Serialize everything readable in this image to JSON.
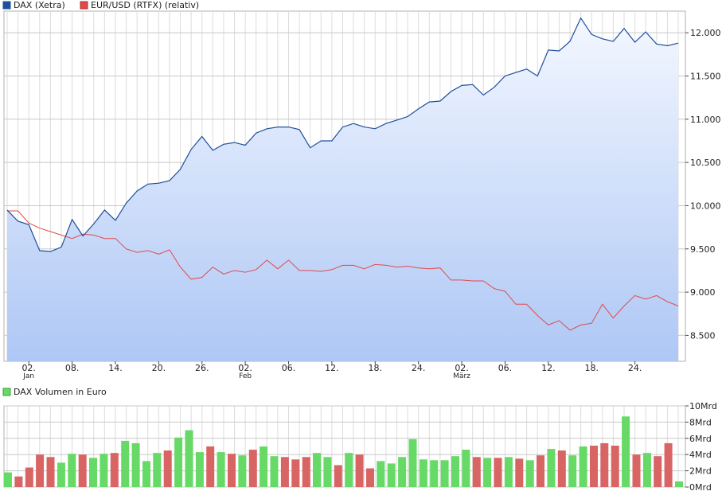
{
  "legend": {
    "dax": "DAX (Xetra)",
    "eurusd": "EUR/USD (RTFX) (relativ)",
    "volume": "DAX Volumen in Euro"
  },
  "colors": {
    "dax_line": "#1e4f9c",
    "eurusd_line": "#e04a4a",
    "vol_up": "#66d966",
    "vol_down": "#d96464",
    "grid": "#dcdcdc",
    "fill_top": "#f3f7ff",
    "fill_bottom": "#aec7f5"
  },
  "chart_data": [
    {
      "type": "line",
      "x_tick_labels": [
        "02.",
        "08.",
        "14.",
        "20.",
        "26.",
        "02.",
        "06.",
        "12.",
        "18.",
        "24.",
        "02.",
        "06.",
        "12.",
        "18.",
        "24."
      ],
      "month_labels": [
        "Jan",
        "Feb",
        "März"
      ],
      "y_tick_labels": [
        "8.500",
        "9.000",
        "9.500",
        "10.000",
        "10.500",
        "11.000",
        "11.500",
        "12.000"
      ],
      "ylim": [
        8200,
        12250
      ],
      "series": [
        {
          "name": "DAX (Xetra)",
          "values": [
            9950,
            9820,
            9780,
            9480,
            9470,
            9520,
            9840,
            9650,
            9790,
            9950,
            9830,
            10030,
            10170,
            10250,
            10260,
            10290,
            10420,
            10650,
            10800,
            10640,
            10710,
            10730,
            10700,
            10840,
            10890,
            10910,
            10910,
            10880,
            10670,
            10750,
            10750,
            10910,
            10950,
            10910,
            10890,
            10950,
            10990,
            11030,
            11120,
            11200,
            11210,
            11320,
            11390,
            11400,
            11280,
            11370,
            11500,
            11540,
            11580,
            11500,
            11800,
            11790,
            11900,
            12170,
            11980,
            11930,
            11900,
            12050,
            11890,
            12010,
            11870,
            11850,
            11880
          ]
        },
        {
          "name": "EUR/USD (RTFX) (relativ)",
          "values": [
            9940,
            9940,
            9800,
            9740,
            9700,
            9660,
            9620,
            9670,
            9660,
            9620,
            9620,
            9500,
            9460,
            9480,
            9440,
            9490,
            9290,
            9150,
            9170,
            9290,
            9210,
            9250,
            9230,
            9260,
            9370,
            9270,
            9370,
            9250,
            9250,
            9240,
            9260,
            9310,
            9310,
            9270,
            9320,
            9310,
            9290,
            9300,
            9280,
            9270,
            9280,
            9140,
            9140,
            9130,
            9130,
            9040,
            9010,
            8860,
            8860,
            8730,
            8620,
            8670,
            8560,
            8620,
            8640,
            8860,
            8700,
            8840,
            8960,
            8920,
            8960,
            8890,
            8840
          ]
        }
      ]
    },
    {
      "type": "bar",
      "title": "DAX Volumen in Euro",
      "y_tick_labels": [
        "0Mrd",
        "2Mrd",
        "4Mrd",
        "6Mrd",
        "8Mrd",
        "10Mrd"
      ],
      "ylim": [
        0,
        10
      ],
      "values": [
        1.8,
        1.3,
        2.4,
        4.0,
        3.7,
        3.0,
        4.1,
        4.0,
        3.6,
        4.1,
        4.2,
        5.7,
        5.4,
        3.2,
        4.2,
        4.5,
        6.1,
        7.0,
        4.3,
        5.0,
        4.3,
        4.1,
        3.9,
        4.6,
        5.0,
        3.8,
        3.7,
        3.4,
        3.7,
        4.2,
        3.7,
        2.7,
        4.2,
        4.0,
        2.3,
        3.2,
        2.9,
        3.7,
        5.9,
        3.4,
        3.3,
        3.3,
        3.8,
        4.6,
        3.7,
        3.6,
        3.6,
        3.7,
        3.5,
        3.3,
        3.9,
        4.7,
        4.5,
        3.9,
        5.0,
        5.1,
        5.4,
        5.1,
        8.7,
        4.0,
        4.2,
        3.8,
        5.4,
        0.7
      ],
      "bar_direction": [
        "up",
        "down",
        "down",
        "down",
        "down",
        "up",
        "up",
        "down",
        "up",
        "up",
        "down",
        "up",
        "up",
        "up",
        "up",
        "down",
        "up",
        "up",
        "up",
        "down",
        "up",
        "down",
        "up",
        "down",
        "up",
        "up",
        "down",
        "down",
        "down",
        "up",
        "up",
        "down",
        "up",
        "down",
        "down",
        "up",
        "up",
        "up",
        "up",
        "up",
        "up",
        "up",
        "up",
        "up",
        "down",
        "up",
        "down",
        "up",
        "down",
        "up",
        "down",
        "up",
        "down",
        "up",
        "up",
        "down",
        "down",
        "down",
        "up",
        "down",
        "up",
        "down",
        "down",
        "up"
      ]
    }
  ]
}
